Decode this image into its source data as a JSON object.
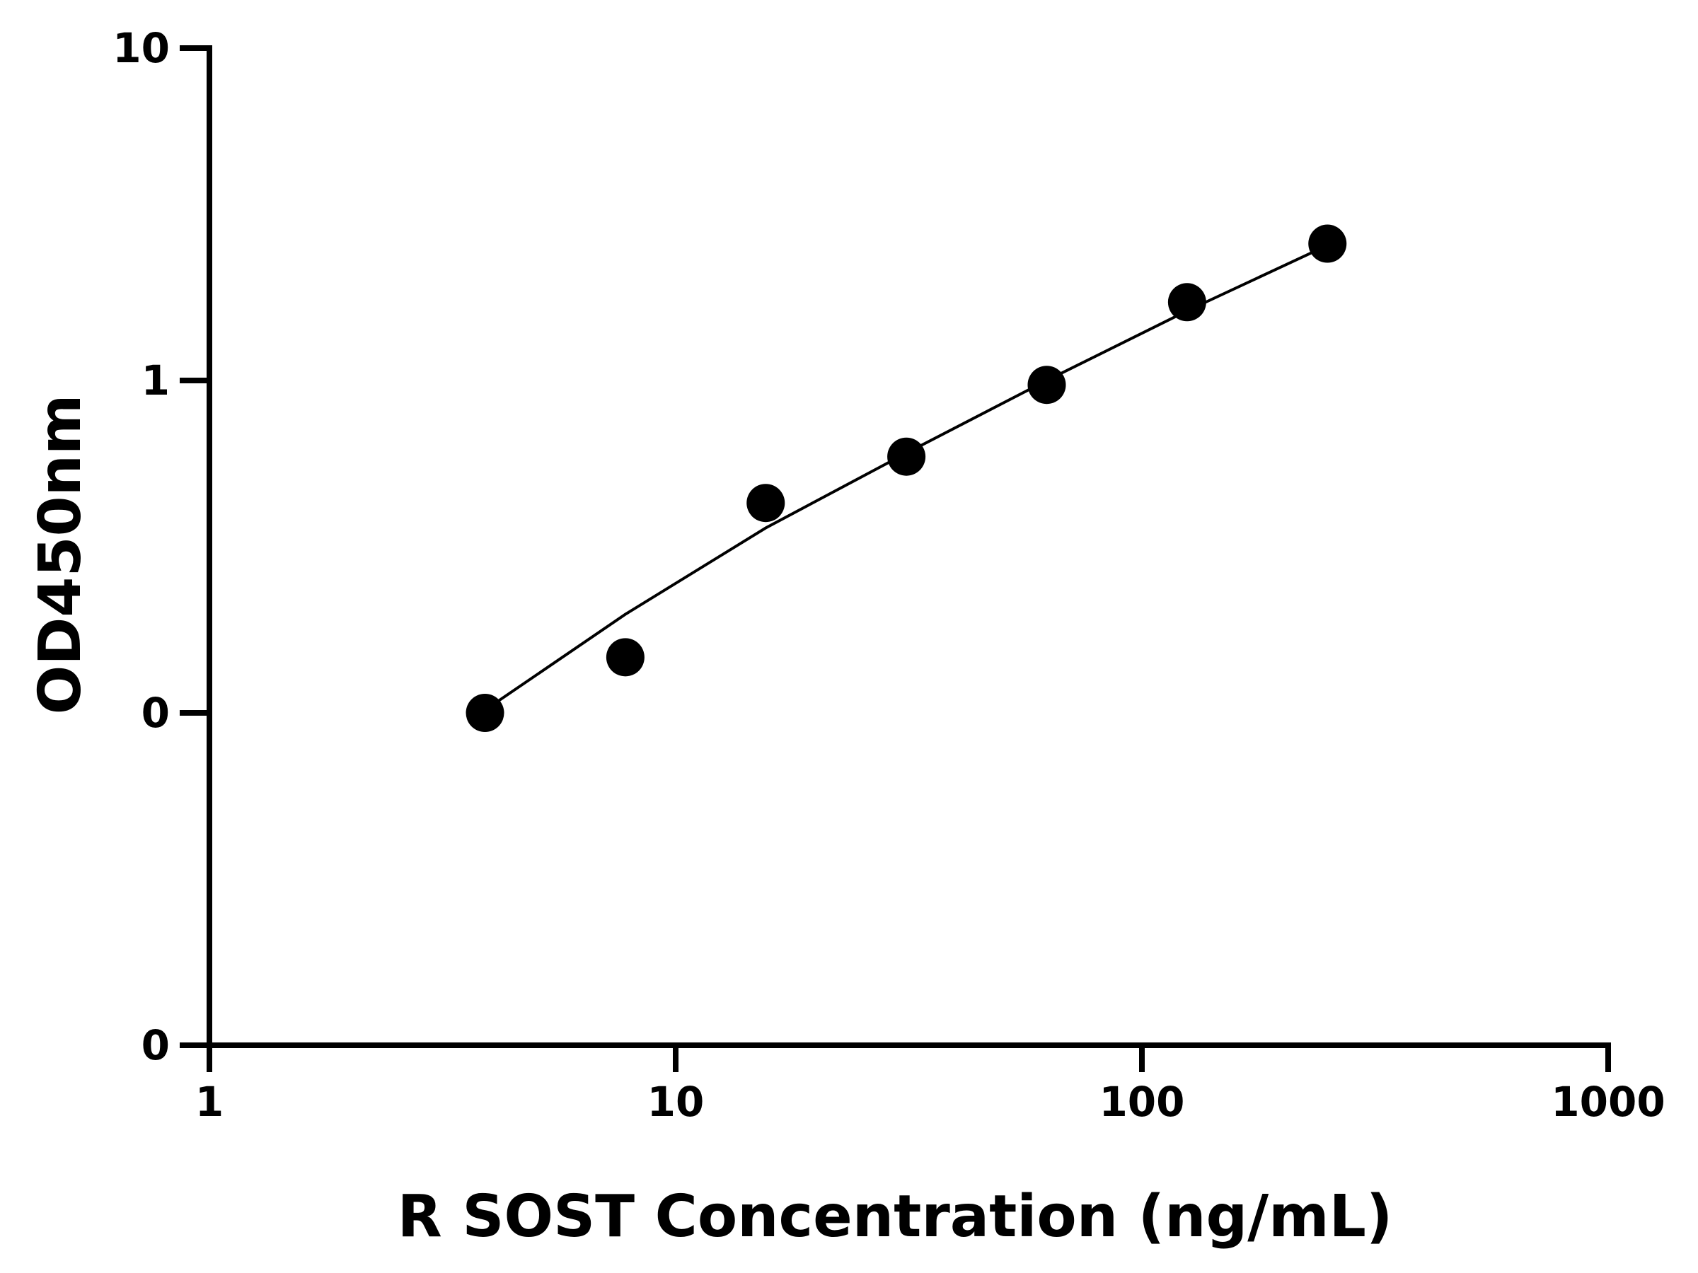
{
  "chart_data": {
    "type": "scatter",
    "xlabel": "R SOST Concentration (ng/mL)",
    "ylabel": "OD450nm",
    "x_scale": "log",
    "y_scale": "log",
    "xlim": [
      1,
      1000
    ],
    "ylim": [
      0.01,
      10
    ],
    "x_ticks": [
      {
        "value": 1,
        "label": "1"
      },
      {
        "value": 10,
        "label": "10"
      },
      {
        "value": 100,
        "label": "100"
      },
      {
        "value": 1000,
        "label": "1000"
      }
    ],
    "y_ticks": [
      {
        "value": 0.01,
        "label": "0"
      },
      {
        "value": 0.1,
        "label": "0"
      },
      {
        "value": 1,
        "label": "1"
      },
      {
        "value": 10,
        "label": "10"
      }
    ],
    "grid": false,
    "legend": "none",
    "series": [
      {
        "marker": "filled-circle",
        "points": [
          {
            "x": 3.9,
            "y": 0.1
          },
          {
            "x": 7.8,
            "y": 0.147
          },
          {
            "x": 15.6,
            "y": 0.428
          },
          {
            "x": 31.25,
            "y": 0.59
          },
          {
            "x": 62.5,
            "y": 0.97
          },
          {
            "x": 125,
            "y": 1.72
          },
          {
            "x": 250,
            "y": 2.58
          }
        ]
      }
    ],
    "fit_curve": {
      "points": [
        {
          "x": 3.9,
          "y": 0.102
        },
        {
          "x": 7.8,
          "y": 0.198
        },
        {
          "x": 15.6,
          "y": 0.36
        },
        {
          "x": 31.25,
          "y": 0.605
        },
        {
          "x": 62.5,
          "y": 1.0
        },
        {
          "x": 125,
          "y": 1.62
        },
        {
          "x": 250,
          "y": 2.55
        }
      ]
    },
    "colors": {
      "marker": "#000000",
      "line": "#000000",
      "axis": "#000000"
    }
  }
}
